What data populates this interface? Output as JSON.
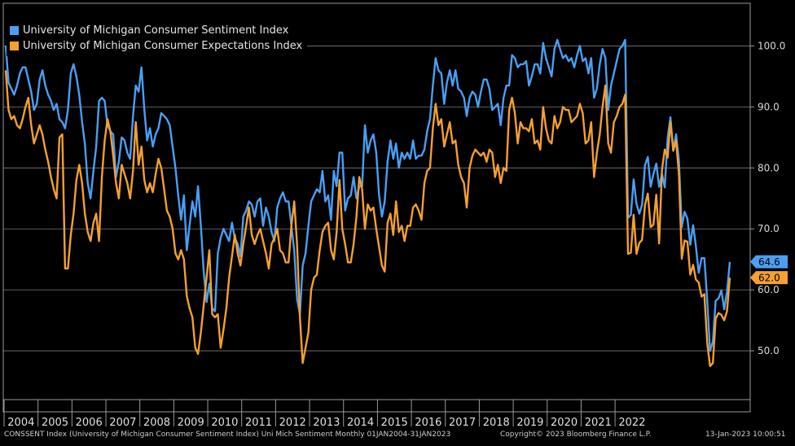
{
  "chart_data": {
    "type": "line",
    "title": "",
    "xlabel": "",
    "ylabel": "",
    "ylim": [
      42,
      107
    ],
    "yticks": [
      "100.0",
      "90.0",
      "80.0",
      "70.0",
      "60.0",
      "50.0"
    ],
    "ytick_values": [
      100,
      90,
      80,
      70,
      60,
      50
    ],
    "xtick_labels": [
      "2004",
      "2005",
      "2006",
      "2007",
      "2008",
      "2009",
      "2010",
      "2011",
      "2012",
      "2013",
      "2014",
      "2015",
      "2016",
      "2017",
      "2018",
      "2019",
      "2020",
      "2021",
      "2022"
    ],
    "grid": true,
    "legend_position": "top-left",
    "x_start": "2004-01",
    "x_end": "2023-01",
    "frequency": "monthly",
    "series": [
      {
        "name": "University of Michigan Consumer Sentiment Index",
        "color": "#4a9ff5",
        "last_label": "64.6",
        "values": [
          100.0,
          94.0,
          93.0,
          92.0,
          93.5,
          95.5,
          96.5,
          96.5,
          94.5,
          92.5,
          89.5,
          90.5,
          94.5,
          96.0,
          93.5,
          92.0,
          91.0,
          89.5,
          90.5,
          88.0,
          87.5,
          86.5,
          89.5,
          95.5,
          97.0,
          95.0,
          92.0,
          87.5,
          84.0,
          77.5,
          75.0,
          79.5,
          83.5,
          91.0,
          91.5,
          91.0,
          87.0,
          86.0,
          85.5,
          78.5,
          81.0,
          85.0,
          84.5,
          82.5,
          81.5,
          88.5,
          93.5,
          92.5,
          96.5,
          89.5,
          84.5,
          86.5,
          83.5,
          85.5,
          86.5,
          89.0,
          88.5,
          88.0,
          87.0,
          83.5,
          80.0,
          75.5,
          71.5,
          75.5,
          66.5,
          70.5,
          74.5,
          72.0,
          77.0,
          70.5,
          63.0,
          58.0,
          61.0,
          57.0,
          56.5,
          66.0,
          68.5,
          70.0,
          69.0,
          68.0,
          71.0,
          68.5,
          67.5,
          65.5,
          72.0,
          73.0,
          74.5,
          74.0,
          72.0,
          74.5,
          75.0,
          70.5,
          73.5,
          72.0,
          69.5,
          68.0,
          73.5,
          75.0,
          76.0,
          74.5,
          74.5,
          70.5,
          66.5,
          58.5,
          56.0,
          64.0,
          66.0,
          70.5,
          74.5,
          75.5,
          76.5,
          76.0,
          79.5,
          74.5,
          75.5,
          71.5,
          79.5,
          77.0,
          82.5,
          82.5,
          73.0,
          75.0,
          75.5,
          78.5,
          75.0,
          77.0,
          77.0,
          87.0,
          82.5,
          84.5,
          85.5,
          82.5,
          75.5,
          72.0,
          74.5,
          81.0,
          84.5,
          81.5,
          84.0,
          80.0,
          82.5,
          81.5,
          82.5,
          81.5,
          84.5,
          81.5,
          82.0,
          82.0,
          83.0,
          86.0,
          88.0,
          93.5,
          98.0,
          96.0,
          95.5,
          90.5,
          94.0,
          96.0,
          93.5,
          96.0,
          93.0,
          92.5,
          91.5,
          88.5,
          91.5,
          92.5,
          92.0,
          90.0,
          92.5,
          94.5,
          94.5,
          93.0,
          89.5,
          90.0,
          90.5,
          87.0,
          91.5,
          93.5,
          93.5,
          98.5,
          98.0,
          96.5,
          97.0,
          97.0,
          97.5,
          93.5,
          95.0,
          97.0,
          97.0,
          95.5,
          100.5,
          98.0,
          96.5,
          95.0,
          99.5,
          101.0,
          99.5,
          98.0,
          98.5,
          97.5,
          98.0,
          96.5,
          98.5,
          100.0,
          97.5,
          98.0,
          95.5,
          98.0,
          91.5,
          93.0,
          97.0,
          99.5,
          98.0,
          89.5,
          93.5,
          95.5,
          97.5,
          99.5,
          100.0,
          101.0,
          71.8,
          72.3,
          78.1,
          74.1,
          72.5,
          74.0,
          80.4,
          81.8,
          76.9,
          79.0,
          80.7,
          76.9,
          79.0,
          76.8,
          84.9,
          88.3,
          82.9,
          85.5,
          81.2,
          70.3,
          72.8,
          71.7,
          67.4,
          70.6,
          67.2,
          62.8,
          65.2,
          65.2,
          58.4,
          50.0,
          51.5,
          58.2,
          58.6,
          59.9,
          56.8,
          59.7,
          64.6
        ]
      },
      {
        "name": "University of Michigan Consumer Expectations Index",
        "color": "#f5a030",
        "last_label": "62.0",
        "values": [
          96.0,
          89.5,
          88.0,
          88.5,
          87.0,
          86.5,
          88.0,
          90.0,
          91.5,
          87.0,
          84.0,
          85.5,
          87.0,
          85.5,
          83.0,
          81.0,
          78.5,
          76.5,
          75.0,
          85.0,
          85.5,
          63.5,
          63.5,
          69.0,
          72.5,
          78.0,
          80.5,
          77.5,
          72.5,
          69.5,
          68.0,
          71.0,
          72.5,
          68.0,
          78.5,
          84.5,
          88.0,
          86.0,
          82.0,
          77.5,
          75.0,
          80.5,
          79.0,
          77.5,
          75.0,
          79.5,
          87.5,
          80.5,
          83.5,
          78.0,
          76.0,
          77.5,
          76.0,
          79.0,
          81.5,
          80.0,
          76.5,
          73.0,
          72.0,
          70.0,
          66.0,
          65.0,
          66.5,
          65.0,
          59.0,
          57.0,
          55.5,
          50.5,
          49.5,
          53.0,
          57.5,
          62.0,
          66.5,
          56.0,
          55.5,
          56.0,
          50.5,
          53.5,
          57.0,
          62.0,
          65.5,
          69.0,
          66.0,
          64.0,
          67.5,
          70.5,
          73.5,
          69.0,
          67.5,
          69.0,
          70.0,
          68.0,
          66.0,
          63.5,
          67.5,
          68.5,
          70.0,
          66.5,
          66.0,
          64.5,
          64.5,
          70.5,
          74.5,
          67.5,
          55.5,
          48.0,
          50.5,
          53.0,
          60.0,
          62.0,
          62.5,
          66.5,
          69.5,
          70.5,
          71.0,
          66.5,
          65.0,
          69.5,
          78.0,
          70.0,
          67.5,
          64.5,
          64.5,
          67.5,
          72.0,
          78.5,
          76.5,
          70.0,
          74.0,
          73.0,
          73.5,
          70.0,
          67.0,
          64.0,
          63.0,
          71.0,
          72.5,
          69.0,
          74.5,
          69.5,
          70.5,
          68.0,
          70.5,
          70.5,
          73.5,
          74.0,
          73.0,
          71.5,
          77.5,
          79.5,
          80.0,
          86.5,
          90.5,
          87.0,
          88.0,
          83.5,
          85.5,
          87.5,
          84.0,
          84.5,
          80.5,
          78.5,
          77.5,
          73.5,
          80.0,
          82.0,
          83.0,
          82.5,
          82.0,
          82.5,
          81.0,
          83.0,
          82.5,
          78.5,
          80.5,
          77.5,
          80.0,
          79.5,
          89.5,
          91.5,
          89.0,
          84.0,
          87.5,
          86.5,
          86.5,
          86.0,
          88.0,
          84.0,
          84.5,
          83.0,
          90.0,
          86.5,
          84.5,
          84.0,
          88.5,
          86.5,
          87.5,
          90.0,
          89.5,
          89.5,
          87.5,
          88.0,
          88.5,
          90.5,
          89.0,
          84.0,
          84.5,
          87.5,
          78.5,
          82.5,
          85.5,
          90.0,
          93.5,
          84.0,
          82.5,
          87.5,
          88.5,
          90.0,
          90.5,
          92.0,
          65.9,
          66.1,
          72.3,
          65.9,
          67.7,
          68.2,
          73.9,
          75.8,
          70.3,
          70.7,
          75.6,
          67.6,
          79.7,
          83.0,
          81.7,
          87.6,
          82.8,
          84.5,
          79.0,
          65.1,
          68.1,
          67.9,
          62.5,
          64.1,
          61.7,
          61.2,
          58.9,
          59.3,
          51.4,
          47.5,
          48.0,
          55.3,
          56.2,
          55.9,
          55.0,
          56.5,
          62.0
        ]
      }
    ]
  },
  "legend": {
    "items": [
      {
        "label": "University of Michigan Consumer Sentiment Index",
        "color": "#4a9ff5"
      },
      {
        "label": "University of Michigan Consumer Expectations Index",
        "color": "#f5a030"
      }
    ]
  },
  "footer": {
    "left": "CONSSENT Index (University of Michigan Consumer Sentiment Index) Uni Mich Sentiment  Monthly 01JAN2004-31JAN2023",
    "center": "Copyright© 2023 Bloomberg Finance L.P.",
    "right": "13-Jan-2023 10:00:51"
  }
}
